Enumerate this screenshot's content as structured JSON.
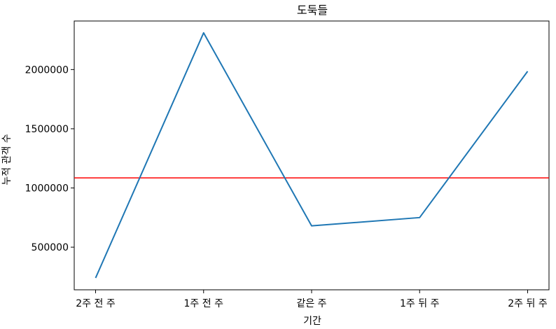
{
  "chart_data": {
    "type": "line",
    "title": "도둑들",
    "xlabel": "기간",
    "ylabel": "누적 관객 수",
    "categories": [
      "2주 전 주",
      "1주 전 주",
      "같은 주",
      "1주 뒤 주",
      "2주 뒤 주"
    ],
    "series": [
      {
        "values": [
          240000,
          2310000,
          680000,
          750000,
          1985000
        ],
        "color": "#1f77b4"
      }
    ],
    "reference_line": {
      "value": 1085000,
      "color": "#ff0000"
    },
    "ylim": [
      140000,
      2410000
    ],
    "yticks": [
      500000,
      1000000,
      1500000,
      2000000
    ],
    "ytick_labels": [
      "500000",
      "1000000",
      "1500000",
      "2000000"
    ],
    "grid": false
  }
}
